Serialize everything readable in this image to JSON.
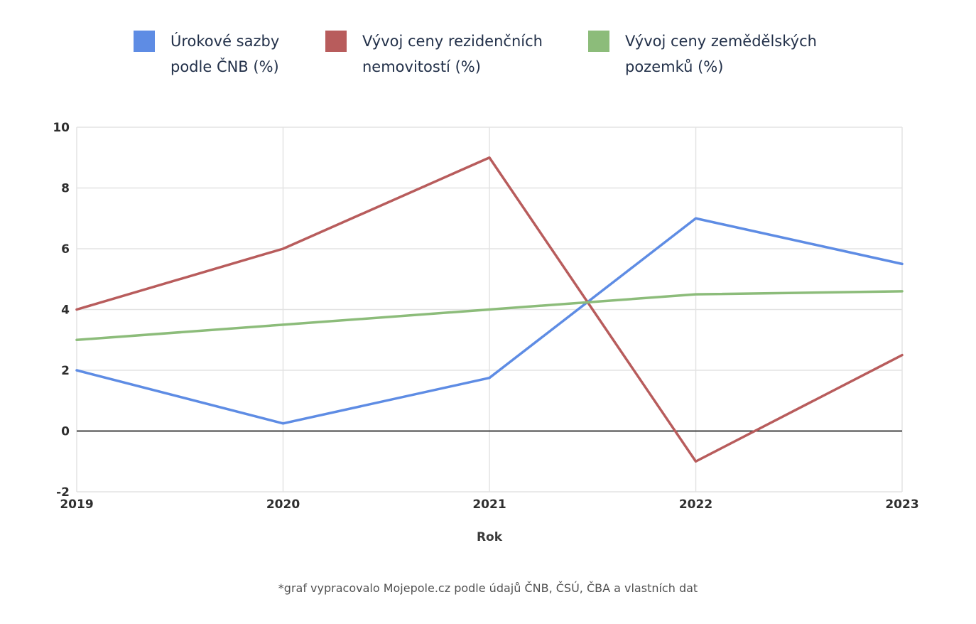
{
  "legend": {
    "items": [
      {
        "line1": "Úrokové sazby",
        "line2": "podle ČNB (%)",
        "color": "#5e8ce4"
      },
      {
        "line1": "Vývoj ceny rezidenčních",
        "line2": "nemovitostí (%)",
        "color": "#b85c5c"
      },
      {
        "line1": "Vývoj ceny zemědělských",
        "line2": "pozemků (%)",
        "color": "#8cbc7a"
      }
    ]
  },
  "chart_data": {
    "type": "line",
    "x": [
      2019,
      2020,
      2021,
      2022,
      2023
    ],
    "x_axis_label": "Rok",
    "ylim": [
      -2,
      10
    ],
    "y_ticks": [
      -2,
      0,
      2,
      4,
      6,
      8,
      10
    ],
    "grid": true,
    "legend_position": "top",
    "series": [
      {
        "name": "Úrokové sazby podle ČNB (%)",
        "color": "#5e8ce4",
        "values": [
          2,
          0.25,
          1.75,
          7,
          5.5
        ]
      },
      {
        "name": "Vývoj ceny rezidenčních nemovitostí (%)",
        "color": "#b85c5c",
        "values": [
          4,
          6,
          9,
          -1,
          2.5
        ]
      },
      {
        "name": "Vývoj ceny zemědělských pozemků (%)",
        "color": "#8cbc7a",
        "values": [
          3,
          3.5,
          4,
          4.5,
          4.6
        ]
      }
    ],
    "colors": {
      "grid": "#e3e3e3",
      "zero_line": "#3f3f3f",
      "tick_label": "#2e2e2e"
    }
  },
  "footer": {
    "note": "*graf vypracovalo Mojepole.cz podle údajů ČNB, ČSÚ, ČBA a vlastních dat"
  }
}
